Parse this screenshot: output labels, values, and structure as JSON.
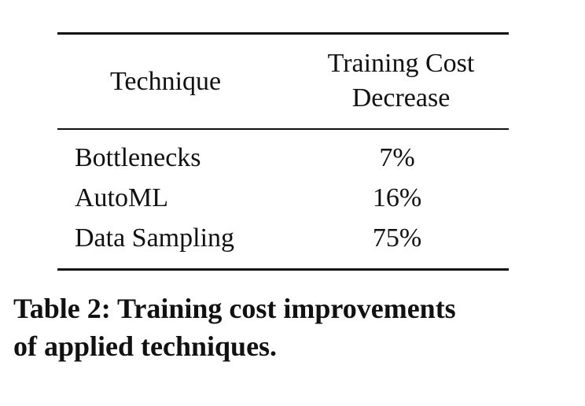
{
  "table": {
    "headers": {
      "technique": "Technique",
      "cost_line1": "Training Cost",
      "cost_line2": "Decrease"
    },
    "rows": [
      {
        "technique": "Bottlenecks",
        "decrease": "7%"
      },
      {
        "technique": "AutoML",
        "decrease": "16%"
      },
      {
        "technique": "Data Sampling",
        "decrease": "75%"
      }
    ]
  },
  "caption": {
    "line1": "Table 2:  Training cost improvements",
    "line2": "of applied techniques."
  }
}
